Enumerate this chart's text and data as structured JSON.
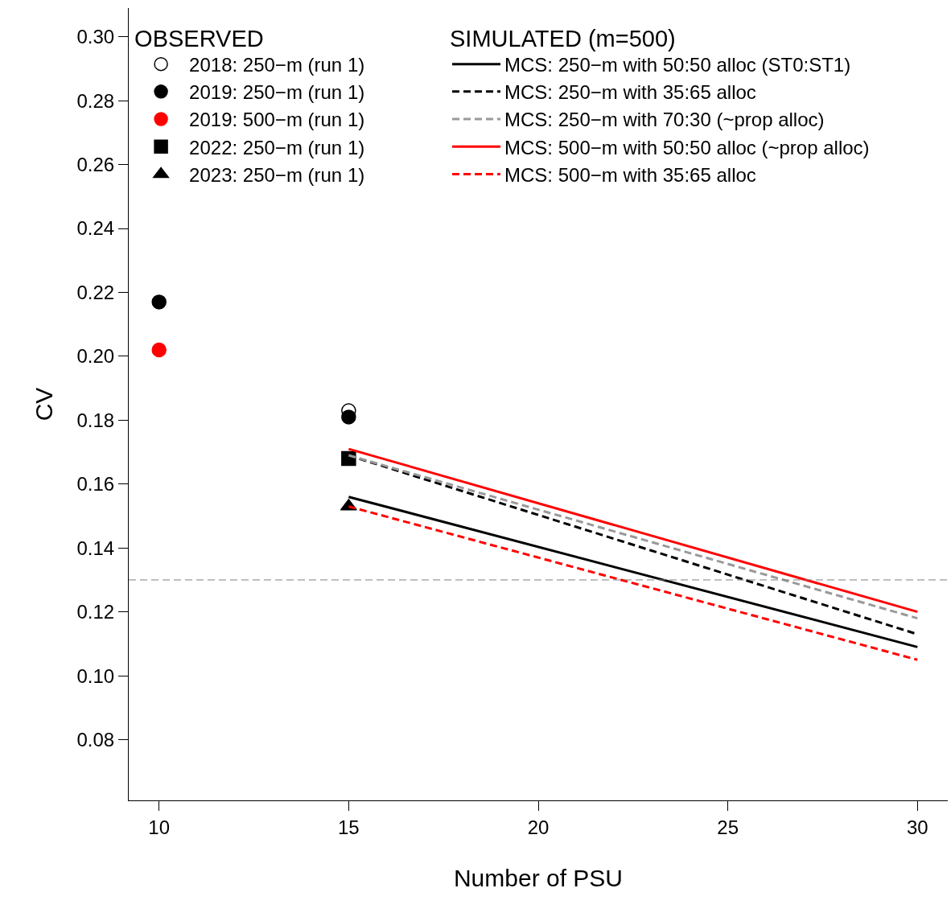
{
  "chart_data": {
    "type": "line",
    "xlabel": "Number of PSU",
    "ylabel": "CV",
    "legend_title": [
      "OBSERVED",
      "SIMULATED (m=500)"
    ],
    "xlim": [
      9.2,
      30.8
    ],
    "xticks": [
      10,
      15,
      20,
      25,
      30
    ],
    "ylim": [
      0.061,
      0.309
    ],
    "yticks": [
      {
        "value": 0.08,
        "label": "0.08"
      },
      {
        "value": 0.1,
        "label": "0.10"
      },
      {
        "value": 0.12,
        "label": "0.12"
      },
      {
        "value": 0.14,
        "label": "0.14"
      },
      {
        "value": 0.16,
        "label": "0.16"
      },
      {
        "value": 0.18,
        "label": "0.18"
      },
      {
        "value": 0.2,
        "label": "0.20"
      },
      {
        "value": 0.22,
        "label": "0.22"
      },
      {
        "value": 0.24,
        "label": "0.24"
      },
      {
        "value": 0.26,
        "label": "0.26"
      },
      {
        "value": 0.28,
        "label": "0.28"
      },
      {
        "value": 0.3,
        "label": "0.30"
      }
    ],
    "legend": "top",
    "ref_lines": [
      {
        "axis": "y",
        "value": 0.13,
        "label": null,
        "color": "#808080",
        "line_style": "dashed"
      }
    ],
    "series": [
      {
        "name": "2018: 250−m (run 1)",
        "type": "scatter",
        "marker": "circle",
        "color": "#ffffff",
        "x": [
          15
        ],
        "values": [
          0.183
        ]
      },
      {
        "name": "2019: 250−m (run 1)",
        "type": "scatter",
        "marker": "circle",
        "color": "#000000",
        "x": [
          10,
          15
        ],
        "values": [
          0.217,
          0.181
        ]
      },
      {
        "name": "2019: 500−m (run 1)",
        "type": "scatter",
        "marker": "circle",
        "color": "#ff0000",
        "x": [
          10
        ],
        "values": [
          0.202
        ]
      },
      {
        "name": "2022: 250−m (run 1)",
        "type": "scatter",
        "marker": "square",
        "color": "#000000",
        "x": [
          15
        ],
        "values": [
          0.168
        ]
      },
      {
        "name": "2023: 250−m (run 1)",
        "type": "scatter",
        "marker": "triangle",
        "color": "#000000",
        "x": [
          15
        ],
        "values": [
          0.153
        ]
      },
      {
        "name": "MCS: 250−m with 50:50 alloc (ST0:ST1)",
        "line_style": "solid",
        "color": "#000000",
        "x": [
          15,
          30
        ],
        "values": [
          0.156,
          0.109
        ]
      },
      {
        "name": "MCS: 250−m with 35:65 alloc",
        "line_style": "dashed",
        "color": "#000000",
        "x": [
          15,
          30
        ],
        "values": [
          0.169,
          0.113
        ]
      },
      {
        "name": "MCS: 250−m with 70:30 (~prop alloc)",
        "line_style": "dashed",
        "color": "#999999",
        "x": [
          15,
          30
        ],
        "values": [
          0.169,
          0.118
        ]
      },
      {
        "name": "MCS: 500−m with 50:50 alloc (~prop alloc)",
        "line_style": "solid",
        "color": "#ff0000",
        "x": [
          15,
          30
        ],
        "values": [
          0.171,
          0.12
        ]
      },
      {
        "name": "MCS: 500−m with 35:65 alloc",
        "line_style": "dashed",
        "color": "#ff0000",
        "x": [
          15,
          30
        ],
        "values": [
          0.153,
          0.105
        ]
      }
    ]
  }
}
